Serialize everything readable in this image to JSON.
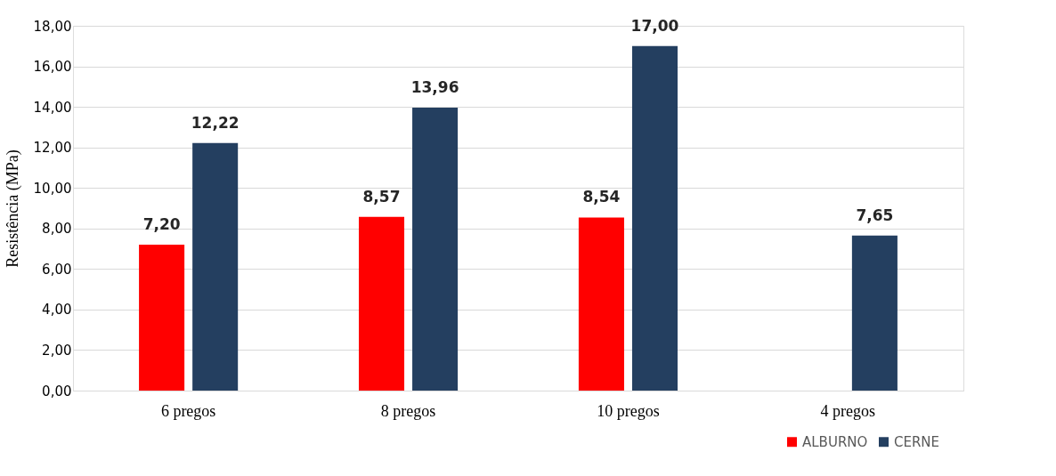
{
  "chart_data": {
    "type": "bar",
    "ylabel": "Resistência (MPa)",
    "categories": [
      "6 pregos",
      "8 pregos",
      "10 pregos",
      "4 pregos"
    ],
    "series": [
      {
        "name": "ALBURNO",
        "color": "#ff0000",
        "values": [
          7.2,
          8.57,
          8.54,
          null
        ],
        "value_labels": [
          "7,20",
          "8,57",
          "8,54",
          null
        ]
      },
      {
        "name": "CERNE",
        "color": "#243f60",
        "values": [
          12.22,
          13.96,
          17.0,
          7.65
        ],
        "value_labels": [
          "12,22",
          "13,96",
          "17,00",
          "7,65"
        ]
      }
    ],
    "ylim": [
      0,
      18
    ],
    "yticks": [
      {
        "value": 0,
        "label": "0,00"
      },
      {
        "value": 2,
        "label": "2,00"
      },
      {
        "value": 4,
        "label": "4,00"
      },
      {
        "value": 6,
        "label": "6,00"
      },
      {
        "value": 8,
        "label": "8,00"
      },
      {
        "value": 10,
        "label": "10,00"
      },
      {
        "value": 12,
        "label": "12,00"
      },
      {
        "value": 14,
        "label": "14,00"
      },
      {
        "value": 16,
        "label": "16,00"
      },
      {
        "value": 18,
        "label": "18,00"
      }
    ],
    "grid": "y",
    "legend": "bottom right"
  }
}
